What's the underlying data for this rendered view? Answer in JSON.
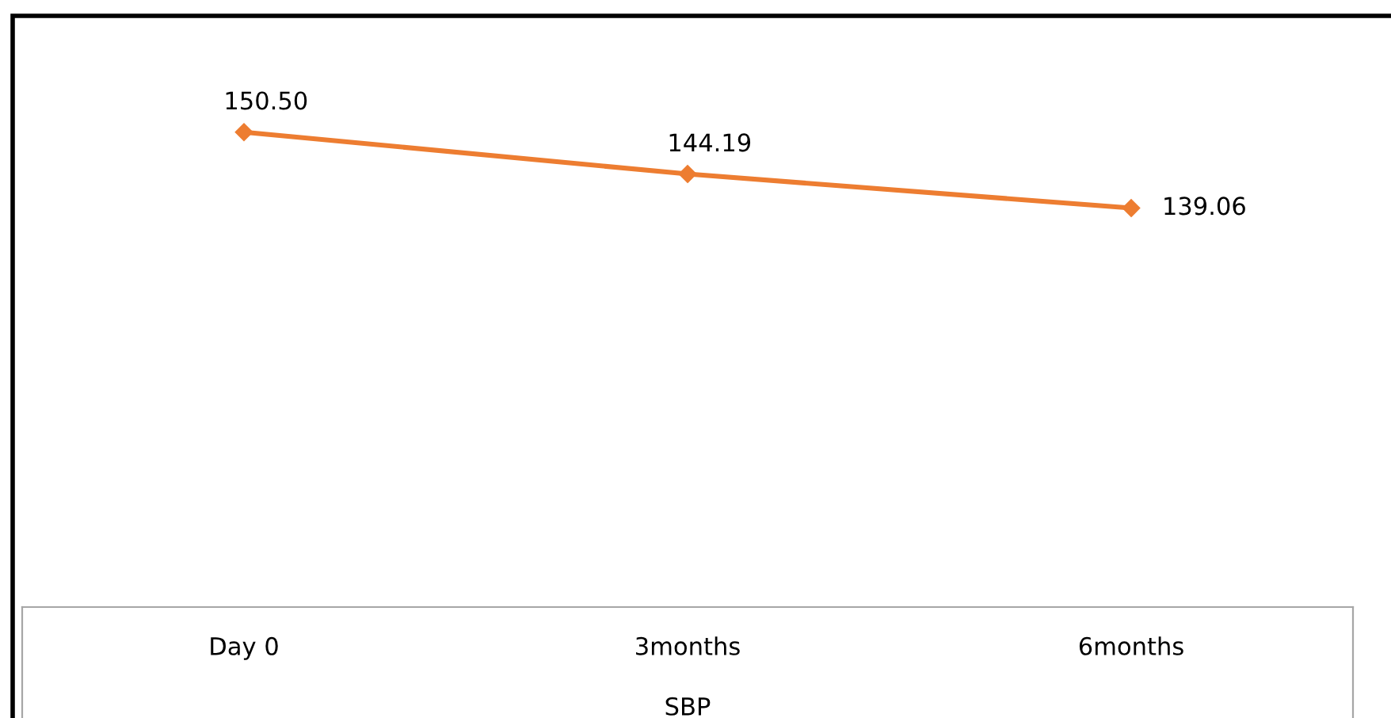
{
  "chart_data": {
    "type": "line",
    "xlabel": "SBP",
    "categories": [
      "Day 0",
      "3months",
      "6months"
    ],
    "series": [
      {
        "color": "#ed7d31",
        "values": [
          150.5,
          144.19,
          139.06
        ],
        "value_labels": [
          "150.50",
          "144.19",
          "139.06"
        ]
      }
    ],
    "ylim": [
      79,
      168
    ],
    "tick_labels": "x",
    "marker": "diamond"
  }
}
